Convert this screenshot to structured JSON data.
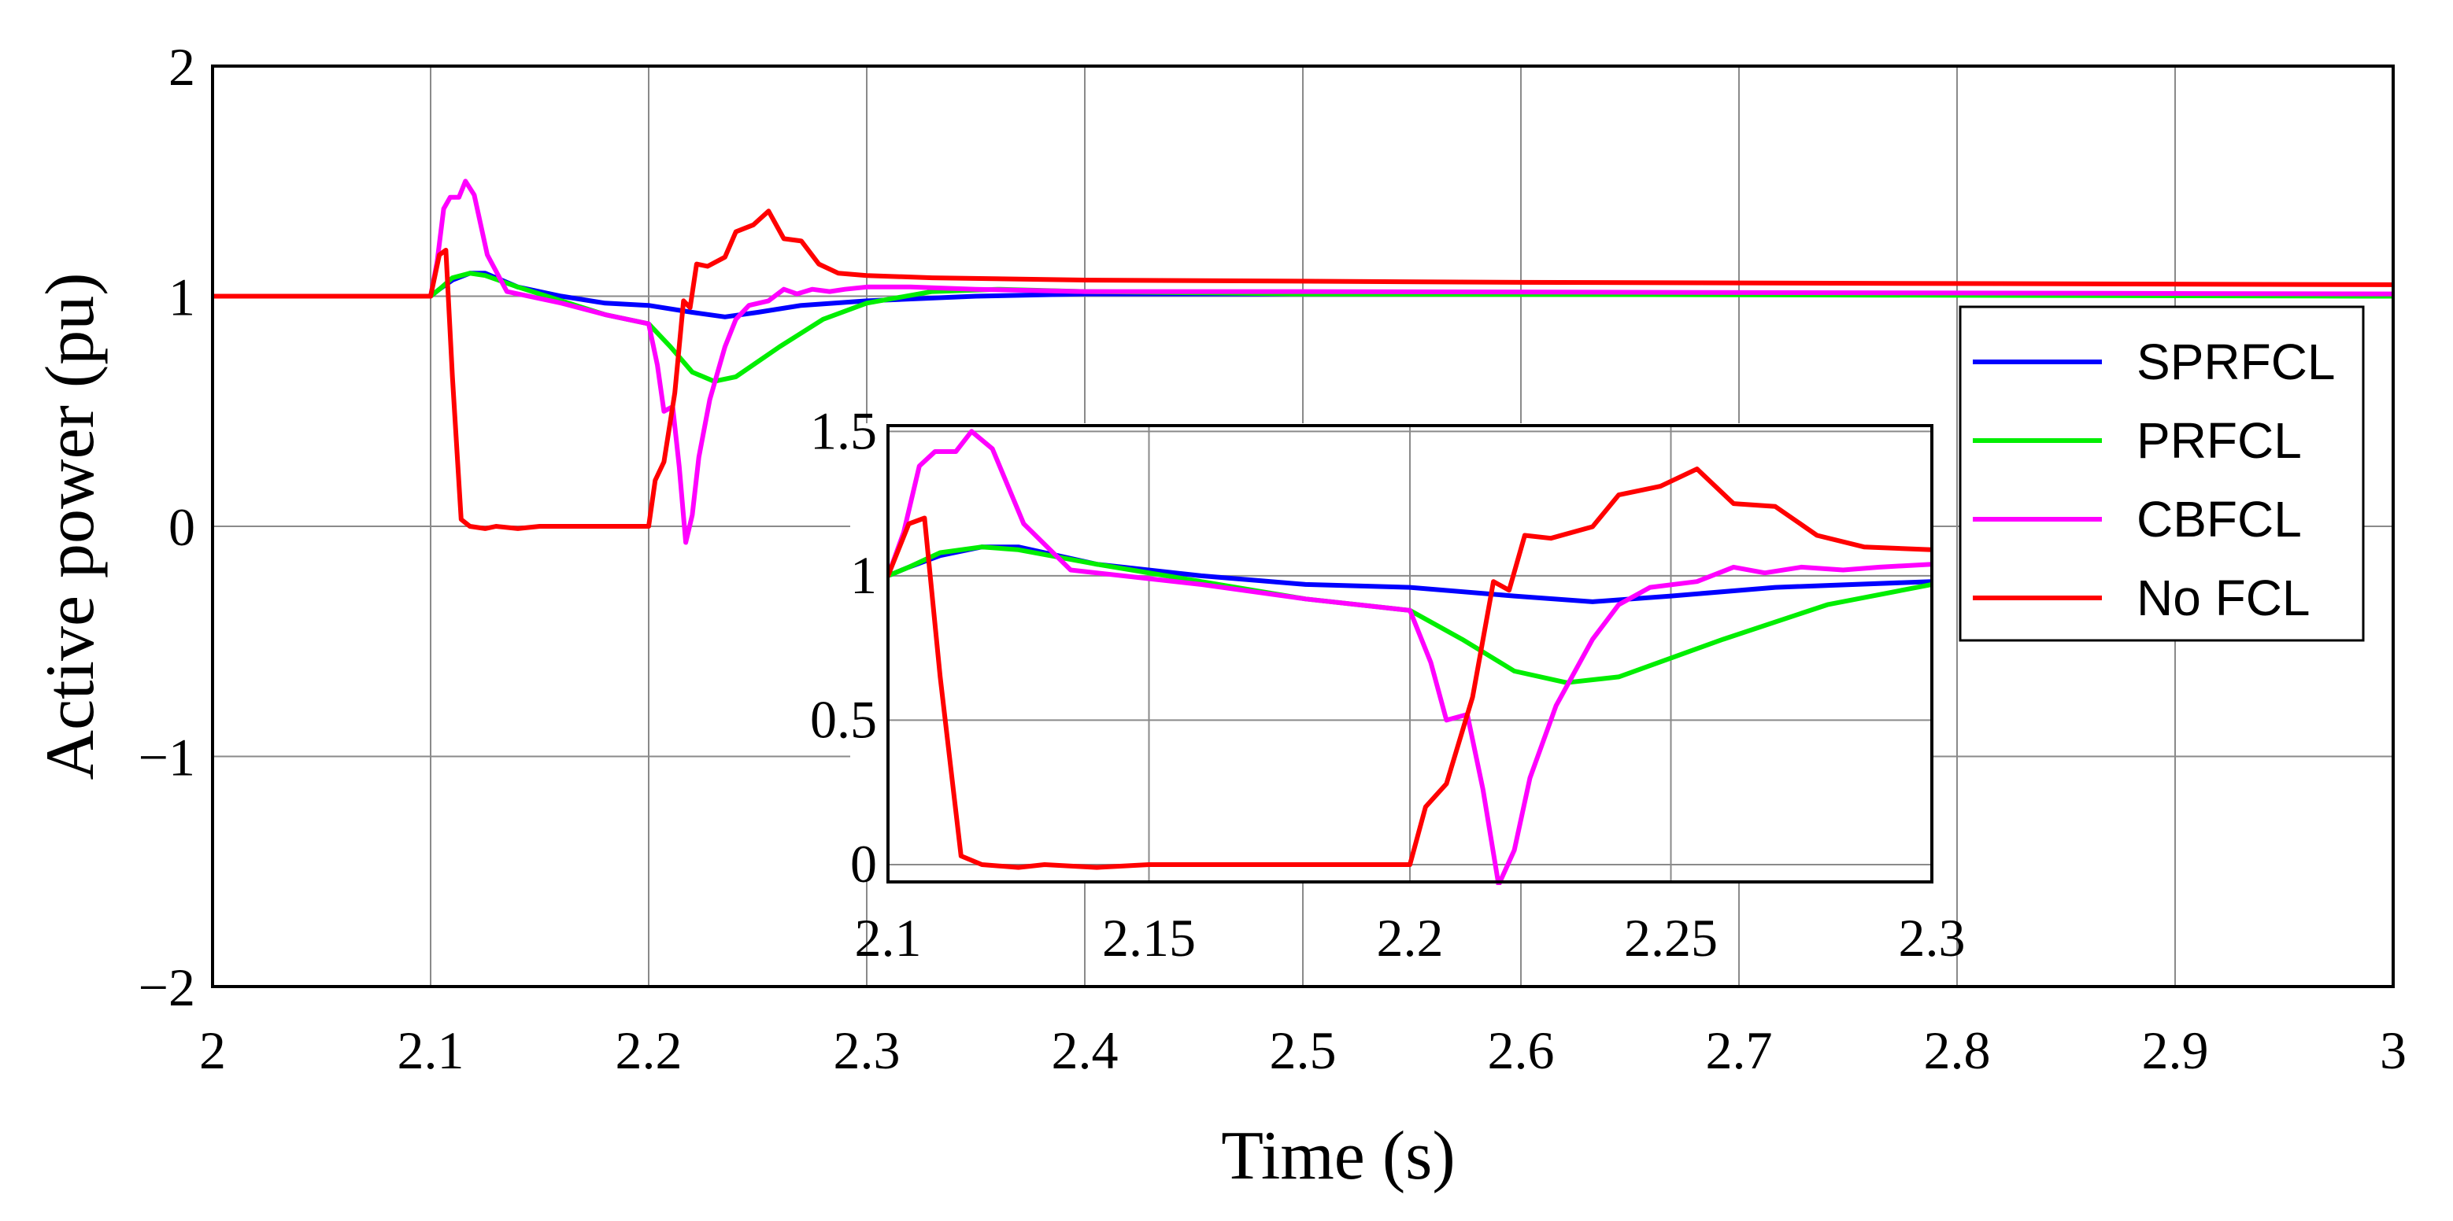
{
  "chart_data": [
    {
      "id": "main",
      "type": "line",
      "xlabel": "Time (s)",
      "ylabel": "Active power (pu)",
      "xlim": [
        2,
        3
      ],
      "ylim": [
        -2,
        2
      ],
      "xticks": [
        2,
        2.1,
        2.2,
        2.3,
        2.4,
        2.5,
        2.6,
        2.7,
        2.8,
        2.9,
        3
      ],
      "xtick_labels": [
        "2",
        "2.1",
        "2.2",
        "2.3",
        "2.4",
        "2.5",
        "2.6",
        "2.7",
        "2.8",
        "2.9",
        "3"
      ],
      "yticks": [
        -2,
        -1,
        0,
        1,
        2
      ],
      "ytick_labels": [
        "−2",
        "−1",
        "0",
        "1",
        "2"
      ],
      "grid": true,
      "legend": {
        "placement": "right",
        "entries": [
          "SPRFCL",
          "PRFCL",
          "CBFCL",
          "No FCL"
        ]
      },
      "series": [
        {
          "name": "SPRFCL",
          "color": "#0000ff",
          "x": [
            2.0,
            2.1,
            2.104,
            2.11,
            2.118,
            2.125,
            2.14,
            2.16,
            2.18,
            2.2,
            2.22,
            2.235,
            2.25,
            2.27,
            2.3,
            2.35,
            2.4,
            2.5,
            2.6,
            2.8,
            3.0
          ],
          "y": [
            1.0,
            1.0,
            1.03,
            1.07,
            1.1,
            1.1,
            1.04,
            1.0,
            0.97,
            0.96,
            0.93,
            0.91,
            0.93,
            0.96,
            0.98,
            1.0,
            1.01,
            1.01,
            1.01,
            1.01,
            1.0
          ]
        },
        {
          "name": "PRFCL",
          "color": "#00ee00",
          "x": [
            2.0,
            2.1,
            2.104,
            2.11,
            2.118,
            2.125,
            2.14,
            2.16,
            2.18,
            2.2,
            2.21,
            2.22,
            2.23,
            2.24,
            2.26,
            2.28,
            2.3,
            2.33,
            2.36,
            2.4,
            2.5,
            3.0
          ],
          "y": [
            1.0,
            1.0,
            1.03,
            1.08,
            1.1,
            1.09,
            1.04,
            0.98,
            0.92,
            0.88,
            0.78,
            0.67,
            0.63,
            0.65,
            0.78,
            0.9,
            0.97,
            1.02,
            1.03,
            1.02,
            1.01,
            1.0
          ]
        },
        {
          "name": "CBFCL",
          "color": "#ff00ff",
          "x": [
            2.0,
            2.1,
            2.103,
            2.106,
            2.109,
            2.113,
            2.116,
            2.12,
            2.126,
            2.135,
            2.16,
            2.18,
            2.2,
            2.204,
            2.207,
            2.211,
            2.214,
            2.217,
            2.22,
            2.223,
            2.228,
            2.235,
            2.24,
            2.246,
            2.255,
            2.262,
            2.268,
            2.275,
            2.283,
            2.29,
            2.3,
            2.32,
            2.35,
            2.4,
            2.5,
            3.0
          ],
          "y": [
            1.0,
            1.0,
            1.15,
            1.38,
            1.43,
            1.43,
            1.5,
            1.44,
            1.18,
            1.02,
            0.97,
            0.92,
            0.88,
            0.7,
            0.5,
            0.52,
            0.26,
            -0.07,
            0.05,
            0.3,
            0.55,
            0.78,
            0.9,
            0.96,
            0.98,
            1.03,
            1.01,
            1.03,
            1.02,
            1.03,
            1.04,
            1.04,
            1.03,
            1.02,
            1.02,
            1.01
          ]
        },
        {
          "name": "No FCL",
          "color": "#ff0000",
          "x": [
            2.0,
            2.1,
            2.104,
            2.107,
            2.11,
            2.114,
            2.118,
            2.125,
            2.13,
            2.14,
            2.15,
            2.17,
            2.19,
            2.2,
            2.203,
            2.207,
            2.212,
            2.216,
            2.219,
            2.222,
            2.227,
            2.235,
            2.24,
            2.248,
            2.255,
            2.262,
            2.27,
            2.278,
            2.287,
            2.3,
            2.33,
            2.4,
            2.6,
            3.0
          ],
          "y": [
            1.0,
            1.0,
            1.18,
            1.2,
            0.65,
            0.03,
            0.0,
            -0.01,
            0.0,
            -0.01,
            0.0,
            0.0,
            0.0,
            0.0,
            0.2,
            0.28,
            0.58,
            0.98,
            0.95,
            1.14,
            1.13,
            1.17,
            1.28,
            1.31,
            1.37,
            1.25,
            1.24,
            1.14,
            1.1,
            1.09,
            1.08,
            1.07,
            1.06,
            1.05
          ]
        }
      ]
    },
    {
      "id": "inset",
      "type": "line",
      "xlim": [
        2.1,
        2.3
      ],
      "ylim": [
        -0.06,
        1.52
      ],
      "xticks": [
        2.1,
        2.15,
        2.2,
        2.25,
        2.3
      ],
      "xtick_labels": [
        "2.1",
        "2.15",
        "2.2",
        "2.25",
        "2.3"
      ],
      "yticks": [
        0,
        0.5,
        1,
        1.5
      ],
      "ytick_labels": [
        "0",
        "0.5",
        "1",
        "1.5"
      ],
      "grid": true,
      "note": "zoomed view of the same four series over 2.1 – 2.3 s"
    }
  ]
}
